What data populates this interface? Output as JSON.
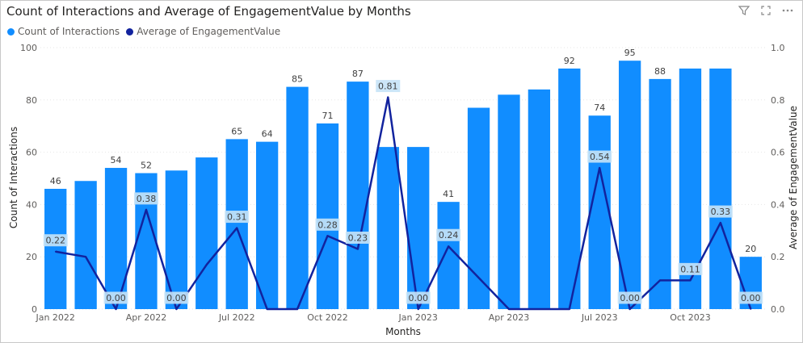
{
  "header": {
    "title": "Count of Interactions and Average of EngagementValue by Months",
    "icons": [
      "filter-icon",
      "focus-mode-icon",
      "more-options-icon"
    ]
  },
  "colors": {
    "bar": "#118DFF",
    "line": "#12239E",
    "label_bg": "#C7E3F7"
  },
  "chart_data": {
    "type": "bar",
    "title": "Count of Interactions and Average of EngagementValue by Months",
    "xlabel": "Months",
    "ylabel": "Count of Interactions",
    "y2label": "Average of EngagementValue",
    "ylim": [
      0,
      100
    ],
    "y2lim": [
      0,
      1
    ],
    "yticks": [
      "0",
      "20",
      "40",
      "60",
      "80",
      "100"
    ],
    "y2ticks": [
      "0.0",
      "0.2",
      "0.4",
      "0.6",
      "0.8",
      "1.0"
    ],
    "legend_position": "top-left",
    "grid": true,
    "categories": [
      "2022-01",
      "2022-02",
      "2022-03",
      "2022-04",
      "2022-05",
      "2022-06",
      "2022-07",
      "2022-08",
      "2022-09",
      "2022-10",
      "2022-11",
      "2022-12",
      "2023-01",
      "2023-02",
      "2023-03",
      "2023-04",
      "2023-05",
      "2023-06",
      "2023-07",
      "2023-08",
      "2023-09",
      "2023-10",
      "2023-11",
      "2023-12"
    ],
    "xtick_labels": [
      {
        "index": 0,
        "label": "Jan 2022"
      },
      {
        "index": 3,
        "label": "Apr 2022"
      },
      {
        "index": 6,
        "label": "Jul 2022"
      },
      {
        "index": 9,
        "label": "Oct 2022"
      },
      {
        "index": 12,
        "label": "Jan 2023"
      },
      {
        "index": 15,
        "label": "Apr 2023"
      },
      {
        "index": 18,
        "label": "Jul 2023"
      },
      {
        "index": 21,
        "label": "Oct 2023"
      }
    ],
    "series": [
      {
        "name": "Count of Interactions",
        "type": "bar",
        "axis": "left",
        "values": [
          46,
          49,
          54,
          52,
          53,
          58,
          65,
          64,
          85,
          71,
          87,
          62,
          62,
          41,
          77,
          82,
          84,
          92,
          74,
          95,
          88,
          92,
          92,
          20
        ],
        "data_labels": [
          "46",
          "",
          "54",
          "52",
          "",
          "",
          "65",
          "64",
          "85",
          "71",
          "87",
          "",
          "",
          "41",
          "",
          "",
          "",
          "92",
          "74",
          "95",
          "88",
          "",
          "",
          "20"
        ]
      },
      {
        "name": "Average of EngagementValue",
        "type": "line",
        "axis": "right",
        "values": [
          0.22,
          0.2,
          0.0,
          0.38,
          0.0,
          0.17,
          0.31,
          0.0,
          0.0,
          0.28,
          0.23,
          0.81,
          0.0,
          0.24,
          0.12,
          0.0,
          0.0,
          0.0,
          0.54,
          0.0,
          0.11,
          0.11,
          0.33,
          0.0
        ],
        "data_labels": [
          "0.22",
          "",
          "0.00",
          "0.38",
          "0.00",
          "",
          "0.31",
          "",
          "",
          "0.28",
          "0.23",
          "0.81",
          "0.00",
          "0.24",
          "",
          "",
          "",
          "",
          "0.54",
          "0.00",
          "",
          "0.11",
          "0.33",
          "0.00"
        ]
      }
    ]
  }
}
